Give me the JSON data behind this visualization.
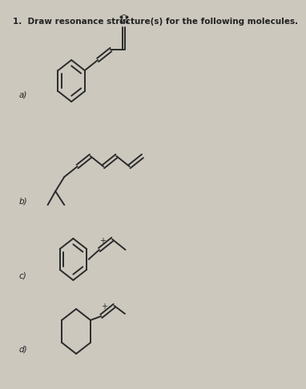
{
  "title": "1.  Draw resonance structure(s) for the following molecules.",
  "bg_color": "#ccc8be",
  "line_color": "#2a2a2a",
  "label_color": "#222222",
  "labels": [
    "a)",
    "b)",
    "c)",
    "d)"
  ],
  "title_fontsize": 7.5,
  "label_fontsize": 7.5,
  "lw": 1.4
}
